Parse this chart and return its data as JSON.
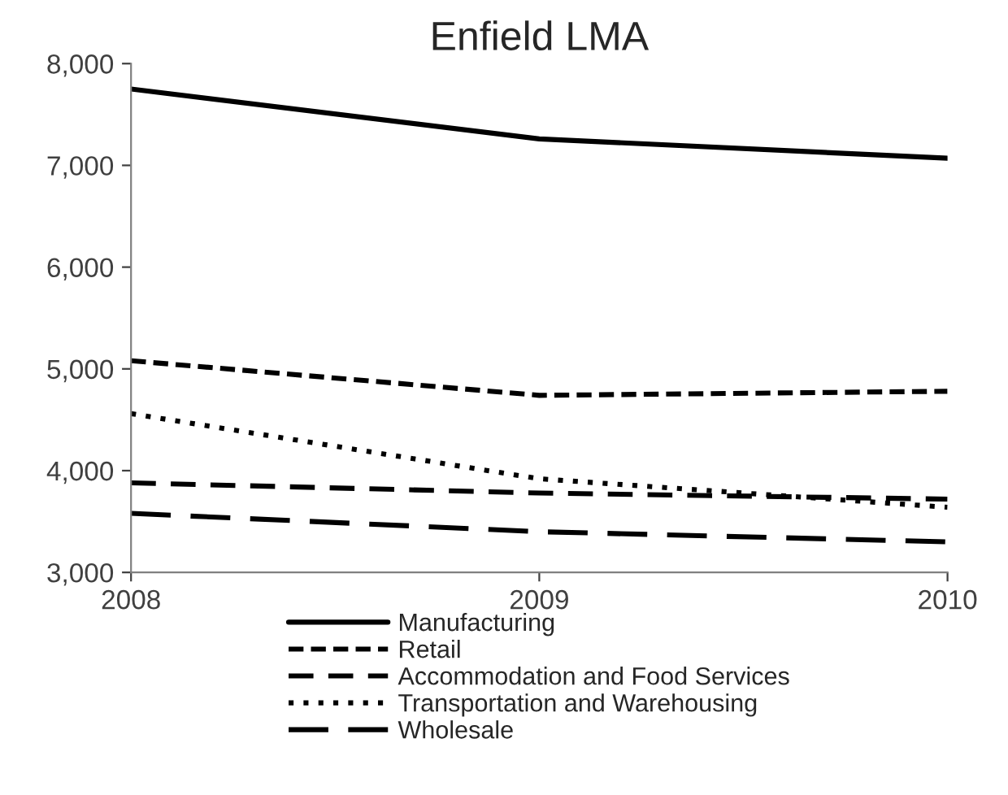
{
  "chart_data": {
    "type": "line",
    "title": "Enfield LMA",
    "x": [
      2008,
      2009,
      2010
    ],
    "series": [
      {
        "name": "Manufacturing",
        "color": "#000000",
        "line_style": "solid",
        "values": [
          7750,
          7260,
          7070
        ]
      },
      {
        "name": "Retail",
        "color": "#000000",
        "line_style": "dashed",
        "values": [
          5080,
          4740,
          4780
        ]
      },
      {
        "name": "Accommodation and Food Services",
        "color": "#000000",
        "line_style": "dashed",
        "values": [
          3880,
          3780,
          3720
        ]
      },
      {
        "name": "Transportation and Warehousing",
        "color": "#000000",
        "line_style": "dotted",
        "values": [
          4560,
          3920,
          3640
        ]
      },
      {
        "name": "Wholesale",
        "color": "#000000",
        "line_style": "dashed",
        "values": [
          3580,
          3400,
          3300
        ]
      }
    ],
    "xlim": [
      2008,
      2010
    ],
    "xticks": [
      2008,
      2009,
      2010
    ],
    "ylim": [
      3000,
      8000
    ],
    "yticks": [
      {
        "value": 3000,
        "label": "3,000"
      },
      {
        "value": 4000,
        "label": "4,000"
      },
      {
        "value": 5000,
        "label": "5,000"
      },
      {
        "value": 6000,
        "label": "6,000"
      },
      {
        "value": 7000,
        "label": "7,000"
      },
      {
        "value": 8000,
        "label": "8,000"
      }
    ],
    "grid": false,
    "legend": "bottom",
    "marker": "none"
  }
}
